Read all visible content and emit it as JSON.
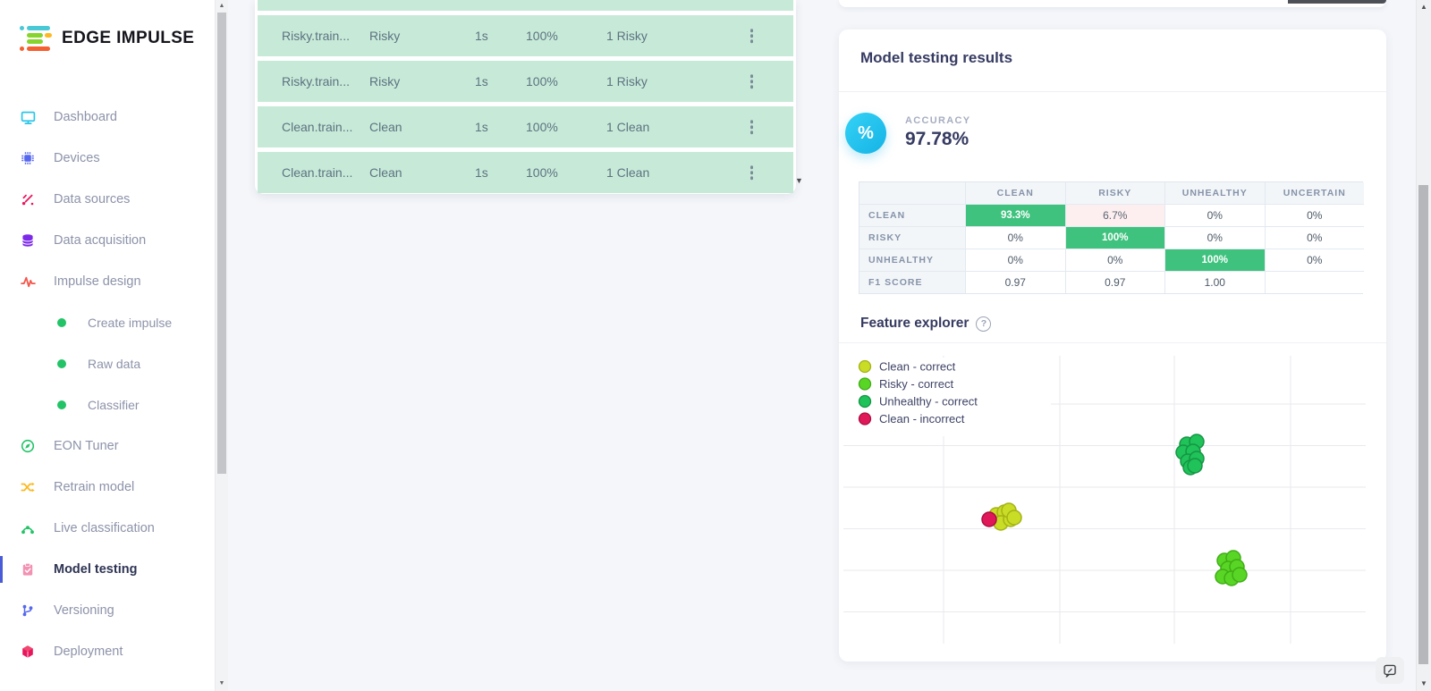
{
  "sidebar": {
    "logo_text": "EDGE IMPULSE",
    "items": [
      {
        "label": "Dashboard"
      },
      {
        "label": "Devices"
      },
      {
        "label": "Data sources"
      },
      {
        "label": "Data acquisition"
      },
      {
        "label": "Impulse design"
      },
      {
        "label": "Create impulse",
        "sub": true
      },
      {
        "label": "Raw data",
        "sub": true
      },
      {
        "label": "Classifier",
        "sub": true
      },
      {
        "label": "EON Tuner"
      },
      {
        "label": "Retrain model"
      },
      {
        "label": "Live classification"
      },
      {
        "label": "Model testing",
        "active": true
      },
      {
        "label": "Versioning"
      },
      {
        "label": "Deployment"
      }
    ]
  },
  "test_table": {
    "row_highlight_color": "#c7ead8",
    "rows": [
      {
        "name": "Risky.train...",
        "expected": "Risky",
        "length": "1s",
        "accuracy": "100%",
        "result": "1 Risky"
      },
      {
        "name": "Risky.train...",
        "expected": "Risky",
        "length": "1s",
        "accuracy": "100%",
        "result": "1 Risky"
      },
      {
        "name": "Clean.train...",
        "expected": "Clean",
        "length": "1s",
        "accuracy": "100%",
        "result": "1 Clean"
      },
      {
        "name": "Clean.train...",
        "expected": "Clean",
        "length": "1s",
        "accuracy": "100%",
        "result": "1 Clean"
      }
    ]
  },
  "results": {
    "title": "Model testing results",
    "accuracy_label": "ACCURACY",
    "accuracy_value": "97.78%",
    "accuracy_badge_glyph": "%",
    "accuracy_badge_color": "#1fc0ec",
    "confusion_matrix": {
      "columns": [
        "CLEAN",
        "RISKY",
        "UNHEALTHY",
        "UNCERTAIN"
      ],
      "good_color": "#3ec27e",
      "bad_color": "#fdeef0",
      "rows": [
        {
          "label": "CLEAN",
          "cells": [
            {
              "text": "93.3%",
              "type": "good"
            },
            {
              "text": "6.7%",
              "type": "bad"
            },
            {
              "text": "0%",
              "type": "plain"
            },
            {
              "text": "0%",
              "type": "plain"
            }
          ]
        },
        {
          "label": "RISKY",
          "cells": [
            {
              "text": "0%",
              "type": "plain"
            },
            {
              "text": "100%",
              "type": "good"
            },
            {
              "text": "0%",
              "type": "plain"
            },
            {
              "text": "0%",
              "type": "plain"
            }
          ]
        },
        {
          "label": "UNHEALTHY",
          "cells": [
            {
              "text": "0%",
              "type": "plain"
            },
            {
              "text": "0%",
              "type": "plain"
            },
            {
              "text": "100%",
              "type": "good"
            },
            {
              "text": "0%",
              "type": "plain"
            }
          ]
        },
        {
          "label": "F1 SCORE",
          "cells": [
            {
              "text": "0.97",
              "type": "plain"
            },
            {
              "text": "0.97",
              "type": "plain"
            },
            {
              "text": "1.00",
              "type": "plain"
            },
            {
              "text": "",
              "type": "plain"
            }
          ]
        }
      ]
    },
    "feature_explorer": {
      "title": "Feature explorer",
      "help_glyph": "?"
    }
  },
  "chart_data": {
    "type": "scatter",
    "title": "Feature explorer",
    "legend_position": "top-left",
    "axes_labeled": false,
    "grid": {
      "vx": [
        117,
        247,
        375,
        505
      ],
      "hy": [
        62,
        108.5,
        155,
        201.5,
        248,
        294.5
      ],
      "x_range": [
        5,
        589
      ],
      "y_range": [
        8,
        330
      ]
    },
    "series": [
      {
        "name": "Clean - correct",
        "color": "#c9dc26",
        "stroke": "#a4b315",
        "points": [
          [
            176,
            186
          ],
          [
            185,
            183
          ],
          [
            181,
            195
          ],
          [
            192,
            191
          ],
          [
            190,
            181
          ],
          [
            196,
            189
          ]
        ]
      },
      {
        "name": "Risky - correct",
        "color": "#58d525",
        "stroke": "#3fae15",
        "points": [
          [
            431,
            237
          ],
          [
            441,
            234
          ],
          [
            435,
            246
          ],
          [
            445,
            244
          ],
          [
            429,
            255
          ],
          [
            439,
            257
          ],
          [
            448,
            253
          ]
        ]
      },
      {
        "name": "Unhealthy - correct",
        "color": "#20c25a",
        "stroke": "#159543",
        "points": [
          [
            389,
            107
          ],
          [
            400,
            104
          ],
          [
            385,
            116
          ],
          [
            396,
            115
          ],
          [
            390,
            126
          ],
          [
            400,
            123
          ],
          [
            393,
            133
          ],
          [
            398,
            131
          ]
        ]
      },
      {
        "name": "Clean - incorrect",
        "color": "#e01859",
        "stroke": "#ad0d43",
        "points": [
          [
            168,
            191
          ]
        ]
      }
    ]
  }
}
